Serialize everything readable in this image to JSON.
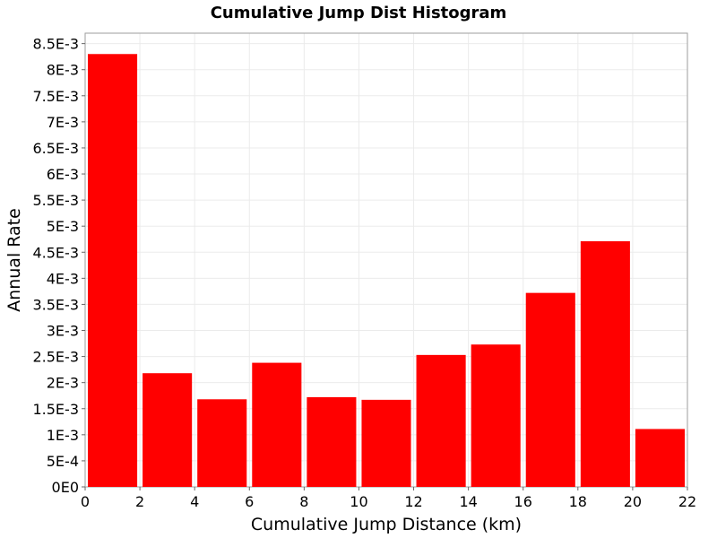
{
  "chart_data": {
    "type": "bar",
    "title": "Cumulative Jump Dist Histogram",
    "xlabel": "Cumulative Jump Distance (km)",
    "ylabel": "Annual Rate",
    "xlim": [
      0,
      22
    ],
    "ylim": [
      0,
      0.0087
    ],
    "x_ticks": [
      0,
      2,
      4,
      6,
      8,
      10,
      12,
      14,
      16,
      18,
      20,
      22
    ],
    "x_tick_labels": [
      "0",
      "2",
      "4",
      "6",
      "8",
      "10",
      "12",
      "14",
      "16",
      "18",
      "20",
      "22"
    ],
    "y_ticks": [
      0,
      0.0005,
      0.001,
      0.0015,
      0.002,
      0.0025,
      0.003,
      0.0035,
      0.004,
      0.0045,
      0.005,
      0.0055,
      0.006,
      0.0065,
      0.007,
      0.0075,
      0.008,
      0.0085
    ],
    "y_tick_labels": [
      "0E0",
      "5E-4",
      "1E-3",
      "1.5E-3",
      "2E-3",
      "2.5E-3",
      "3E-3",
      "3.5E-3",
      "4E-3",
      "4.5E-3",
      "5E-3",
      "5.5E-3",
      "6E-3",
      "6.5E-3",
      "7E-3",
      "7.5E-3",
      "8E-3",
      "8.5E-3"
    ],
    "bin_width": 2,
    "bins": [
      {
        "x0": 0,
        "x1": 2,
        "value": 0.0083
      },
      {
        "x0": 2,
        "x1": 4,
        "value": 0.00218
      },
      {
        "x0": 4,
        "x1": 6,
        "value": 0.00168
      },
      {
        "x0": 6,
        "x1": 8,
        "value": 0.00238
      },
      {
        "x0": 8,
        "x1": 10,
        "value": 0.00172
      },
      {
        "x0": 10,
        "x1": 12,
        "value": 0.00167
      },
      {
        "x0": 12,
        "x1": 14,
        "value": 0.00253
      },
      {
        "x0": 14,
        "x1": 16,
        "value": 0.00273
      },
      {
        "x0": 16,
        "x1": 18,
        "value": 0.00372
      },
      {
        "x0": 18,
        "x1": 20,
        "value": 0.00471
      },
      {
        "x0": 20,
        "x1": 22,
        "value": 0.00111
      }
    ],
    "grid": true,
    "bar_color": "#ff0000",
    "grid_color": "#ebebeb",
    "axis_color": "#9e9e9e"
  }
}
